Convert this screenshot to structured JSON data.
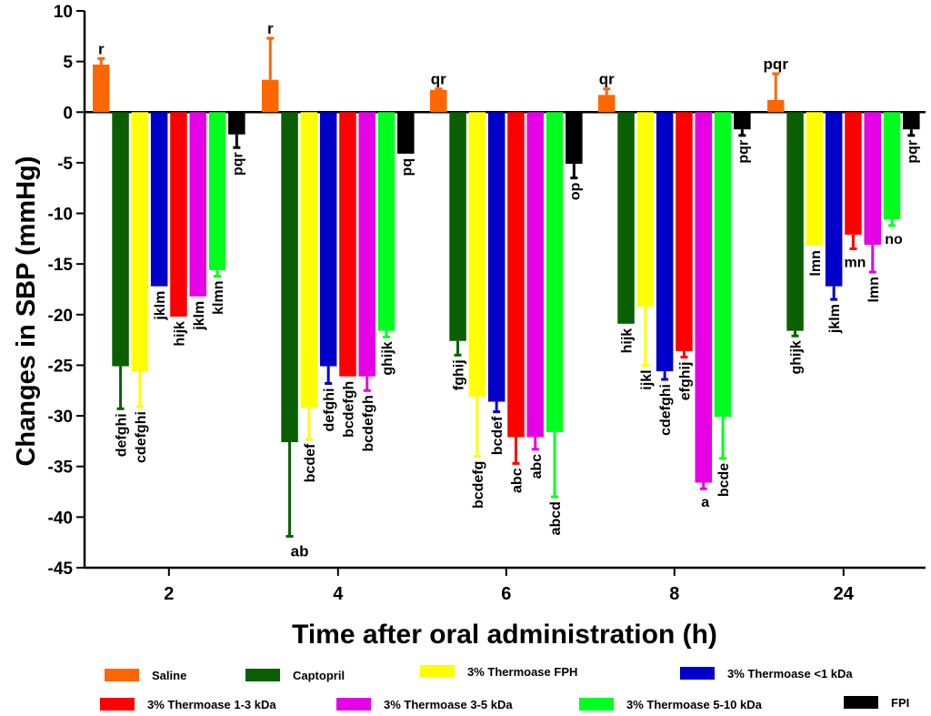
{
  "chart_data": {
    "type": "bar",
    "title": "",
    "xlabel": "Time after oral administration (h)",
    "ylabel": "Changes in SBP (mmHg)",
    "ylim": [
      -45,
      10
    ],
    "yticks": [
      10,
      5,
      0,
      -5,
      -10,
      -15,
      -20,
      -25,
      -30,
      -35,
      -40,
      -45
    ],
    "categories": [
      "2",
      "4",
      "6",
      "8",
      "24"
    ],
    "series": [
      {
        "name": "Saline",
        "color": "#ff6600",
        "values": [
          4.7,
          3.2,
          2.2,
          1.7,
          1.2
        ],
        "errors": [
          0.6,
          4.1,
          0.1,
          0.6,
          2.6
        ],
        "letters": [
          "r",
          "r",
          "qr",
          "qr",
          "pqr"
        ]
      },
      {
        "name": "Captopril",
        "color": "#0a5f00",
        "values": [
          -25.1,
          -32.6,
          -22.6,
          -20.9,
          -21.6
        ],
        "errors": [
          4.2,
          9.3,
          1.4,
          0,
          0.5
        ],
        "letters": [
          "defghi",
          "ab",
          "fghij",
          "hijk",
          "ghijk"
        ]
      },
      {
        "name": "3% Thermoase FPH",
        "color": "#ffff00",
        "values": [
          -25.6,
          -29.2,
          -28.1,
          -19.2,
          -13.2
        ],
        "errors": [
          3.5,
          3.1,
          5.9,
          5.8,
          0
        ],
        "letters": [
          "cdefghi",
          "bcdef",
          "bcdefg",
          "ijkl",
          "lmn"
        ]
      },
      {
        "name": "3% Thermoase <1 kDa",
        "color": "#0000c8",
        "values": [
          -17.2,
          -25.1,
          -28.6,
          -25.6,
          -17.2
        ],
        "errors": [
          0,
          1.7,
          1.0,
          0.8,
          1.3
        ],
        "letters": [
          "jklm",
          "defghi",
          "bcdef",
          "cdefghi",
          "jklm"
        ]
      },
      {
        "name": "3% Thermoase 1-3 kDa",
        "color": "#ff0000",
        "values": [
          -20.2,
          -26.1,
          -32.1,
          -23.6,
          -12.1
        ],
        "errors": [
          0,
          0,
          2.6,
          0.6,
          1.4
        ],
        "letters": [
          "hijk",
          "bcdefgh",
          "abc",
          "efghij",
          "mn"
        ]
      },
      {
        "name": "3% Thermoase 3-5 kDa",
        "color": "#e600e6",
        "values": [
          -18.2,
          -26.1,
          -32.1,
          -36.6,
          -13.1
        ],
        "errors": [
          0,
          1.4,
          1.2,
          0.6,
          2.7
        ],
        "letters": [
          "jklm",
          "bcdefgh",
          "abc",
          "a",
          "lmn"
        ]
      },
      {
        "name": "3% Thermoase 5-10 kDa",
        "color": "#00ff1e",
        "values": [
          -15.6,
          -21.6,
          -31.6,
          -30.1,
          -10.6
        ],
        "errors": [
          0.6,
          0.6,
          6.4,
          4.1,
          0.6
        ],
        "letters": [
          "klmn",
          "ghijk",
          "abcd",
          "bcde",
          "no"
        ]
      },
      {
        "name": "FPI",
        "color": "#000000",
        "values": [
          -2.2,
          -4.1,
          -5.1,
          -1.7,
          -1.7
        ],
        "errors": [
          1.3,
          0,
          1.4,
          0.6,
          0.6
        ],
        "letters": [
          "pqr",
          "pq",
          "op",
          "pqr",
          "pqr"
        ]
      }
    ],
    "legend_position": "bottom"
  }
}
